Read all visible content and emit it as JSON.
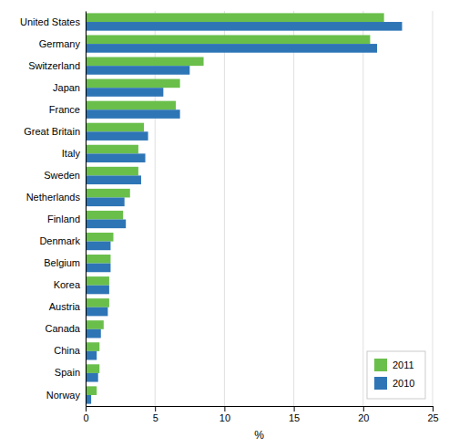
{
  "chart_data": {
    "type": "bar",
    "orientation": "horizontal",
    "categories": [
      "United States",
      "Germany",
      "Switzerland",
      "Japan",
      "France",
      "Great Britain",
      "Italy",
      "Sweden",
      "Netherlands",
      "Finland",
      "Denmark",
      "Belgium",
      "Korea",
      "Austria",
      "Canada",
      "China",
      "Spain",
      "Norway"
    ],
    "series": [
      {
        "name": "2011",
        "color": "#6abf4b",
        "values": [
          21.5,
          20.5,
          8.5,
          6.8,
          6.5,
          4.2,
          3.8,
          3.8,
          3.2,
          2.7,
          2.0,
          1.8,
          1.7,
          1.7,
          1.3,
          1.0,
          1.0,
          0.8
        ]
      },
      {
        "name": "2010",
        "color": "#2e75b6",
        "values": [
          22.8,
          21.0,
          7.5,
          5.6,
          6.8,
          4.5,
          4.3,
          4.0,
          2.8,
          2.9,
          1.8,
          1.8,
          1.7,
          1.6,
          1.1,
          0.8,
          0.9,
          0.4
        ]
      }
    ],
    "xlabel": "%",
    "xlim": [
      0,
      25
    ],
    "xticks": [
      0,
      5,
      10,
      15,
      20,
      25
    ],
    "grid": true,
    "legend": "lower-right"
  }
}
